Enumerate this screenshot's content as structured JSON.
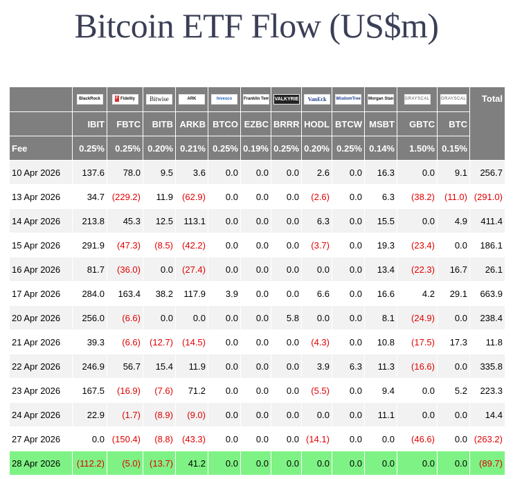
{
  "title": "Bitcoin ETF Flow (US$m)",
  "issuers": [
    {
      "logo_text": "BlackRock",
      "icon": "blackrock-logo"
    },
    {
      "logo_text": "Fidelity",
      "icon": "fidelity-logo"
    },
    {
      "logo_text": "Bitwise",
      "icon": "bitwise-logo"
    },
    {
      "logo_text": "ARK",
      "icon": "ark-invest-logo"
    },
    {
      "logo_text": "Invesco",
      "icon": "invesco-logo"
    },
    {
      "logo_text": "Franklin Templeton",
      "icon": "franklin-templeton-logo"
    },
    {
      "logo_text": "VALKYRIE",
      "icon": "valkyrie-logo"
    },
    {
      "logo_text": "VanEck",
      "icon": "vaneck-logo"
    },
    {
      "logo_text": "WisdomTree",
      "icon": "wisdomtree-logo"
    },
    {
      "logo_text": "Morgan Stanley",
      "icon": "morgan-stanley-logo"
    },
    {
      "logo_text": "GRAYSCALE",
      "icon": "grayscale-logo"
    },
    {
      "logo_text": "GRAYSCALE",
      "icon": "grayscale-logo"
    }
  ],
  "total_label": "Total",
  "tickers": [
    "IBIT",
    "FBTC",
    "BITB",
    "ARKB",
    "BTCO",
    "EZBC",
    "BRRR",
    "HODL",
    "BTCW",
    "MSBT",
    "GBTC",
    "BTC"
  ],
  "fee_label": "Fee",
  "fees": [
    "0.25%",
    "0.25%",
    "0.20%",
    "0.21%",
    "0.25%",
    "0.19%",
    "0.25%",
    "0.20%",
    "0.25%",
    "0.14%",
    "1.50%",
    "0.15%"
  ],
  "rows": [
    {
      "date": "10 Apr 2026",
      "values": [
        "137.6",
        "78.0",
        "9.5",
        "3.6",
        "0.0",
        "0.0",
        "0.0",
        "2.6",
        "0.0",
        "16.3",
        "0.0",
        "9.1"
      ],
      "total": "256.7"
    },
    {
      "date": "13 Apr 2026",
      "values": [
        "34.7",
        "(229.2)",
        "11.9",
        "(62.9)",
        "0.0",
        "0.0",
        "0.0",
        "(2.6)",
        "0.0",
        "6.3",
        "(38.2)",
        "(11.0)"
      ],
      "total": "(291.0)"
    },
    {
      "date": "14 Apr 2026",
      "values": [
        "213.8",
        "45.3",
        "12.5",
        "113.1",
        "0.0",
        "0.0",
        "0.0",
        "6.3",
        "0.0",
        "15.5",
        "0.0",
        "4.9"
      ],
      "total": "411.4"
    },
    {
      "date": "15 Apr 2026",
      "values": [
        "291.9",
        "(47.3)",
        "(8.5)",
        "(42.2)",
        "0.0",
        "0.0",
        "0.0",
        "(3.7)",
        "0.0",
        "19.3",
        "(23.4)",
        "0.0"
      ],
      "total": "186.1"
    },
    {
      "date": "16 Apr 2026",
      "values": [
        "81.7",
        "(36.0)",
        "0.0",
        "(27.4)",
        "0.0",
        "0.0",
        "0.0",
        "0.0",
        "0.0",
        "13.4",
        "(22.3)",
        "16.7"
      ],
      "total": "26.1"
    },
    {
      "date": "17 Apr 2026",
      "values": [
        "284.0",
        "163.4",
        "38.2",
        "117.9",
        "3.9",
        "0.0",
        "0.0",
        "6.6",
        "0.0",
        "16.6",
        "4.2",
        "29.1"
      ],
      "total": "663.9"
    },
    {
      "date": "20 Apr 2026",
      "values": [
        "256.0",
        "(6.6)",
        "0.0",
        "0.0",
        "0.0",
        "0.0",
        "5.8",
        "0.0",
        "0.0",
        "8.1",
        "(24.9)",
        "0.0"
      ],
      "total": "238.4"
    },
    {
      "date": "21 Apr 2026",
      "values": [
        "39.3",
        "(6.6)",
        "(12.7)",
        "(14.5)",
        "0.0",
        "0.0",
        "0.0",
        "(4.3)",
        "0.0",
        "10.8",
        "(17.5)",
        "17.3"
      ],
      "total": "11.8"
    },
    {
      "date": "22 Apr 2026",
      "values": [
        "246.9",
        "56.7",
        "15.4",
        "11.9",
        "0.0",
        "0.0",
        "0.0",
        "3.9",
        "6.3",
        "11.3",
        "(16.6)",
        "0.0"
      ],
      "total": "335.8"
    },
    {
      "date": "23 Apr 2026",
      "values": [
        "167.5",
        "(16.9)",
        "(7.6)",
        "71.2",
        "0.0",
        "0.0",
        "0.0",
        "(5.5)",
        "0.0",
        "9.4",
        "0.0",
        "5.2"
      ],
      "total": "223.3"
    },
    {
      "date": "24 Apr 2026",
      "values": [
        "22.9",
        "(1.7)",
        "(8.9)",
        "(9.0)",
        "0.0",
        "0.0",
        "0.0",
        "0.0",
        "0.0",
        "11.1",
        "0.0",
        "0.0"
      ],
      "total": "14.4"
    },
    {
      "date": "27 Apr 2026",
      "values": [
        "0.0",
        "(150.4)",
        "(8.8)",
        "(43.3)",
        "0.0",
        "0.0",
        "0.0",
        "(14.1)",
        "0.0",
        "0.0",
        "(46.6)",
        "0.0"
      ],
      "total": "(263.2)"
    },
    {
      "date": "28 Apr 2026",
      "values": [
        "(112.2)",
        "(5.0)",
        "(13.7)",
        "41.2",
        "0.0",
        "0.0",
        "0.0",
        "0.0",
        "0.0",
        "0.0",
        "0.0",
        "0.0"
      ],
      "total": "(89.7)"
    }
  ],
  "colors": {
    "header_bg": "#7f7f7f",
    "negative": "#e00000",
    "highlight_row": "#7ff285",
    "title": "#3a3f56"
  }
}
